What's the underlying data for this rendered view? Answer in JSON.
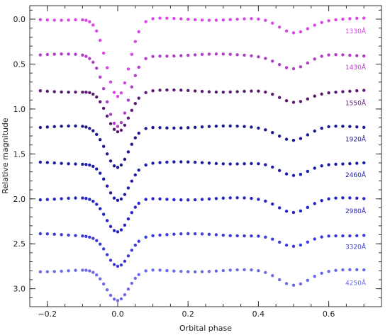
{
  "chart_data": {
    "type": "scatter",
    "title": "",
    "xlabel": "Orbital phase",
    "ylabel": "Relative magnitude",
    "xlim": [
      -0.25,
      0.75
    ],
    "ylim": [
      3.2,
      -0.15
    ],
    "y_inverted": true,
    "grid": false,
    "x_ticks": [
      -0.2,
      0.0,
      0.2,
      0.4,
      0.6
    ],
    "x_tick_labels": [
      "−0.2",
      "0.0",
      "0.2",
      "0.4",
      "0.6"
    ],
    "y_ticks": [
      0.0,
      0.5,
      1.0,
      1.5,
      2.0,
      2.5,
      3.0
    ],
    "y_tick_labels": [
      "0.0",
      "0.5",
      "1.0",
      "1.5",
      "2.0",
      "2.5",
      "3.0"
    ],
    "series": [
      {
        "name": "1330Å",
        "offset": 0.0,
        "primary_depth": 0.85,
        "secondary_depth": 0.15,
        "color": "#d846e6"
      },
      {
        "name": "1430Å",
        "offset": 0.4,
        "primary_depth": 0.8,
        "secondary_depth": 0.15,
        "color": "#b03cc8"
      },
      {
        "name": "1550Å",
        "offset": 0.8,
        "primary_depth": 0.45,
        "secondary_depth": 0.13,
        "color": "#5a1a6e"
      },
      {
        "name": "1920Å",
        "offset": 1.2,
        "primary_depth": 0.45,
        "secondary_depth": 0.14,
        "color": "#1a1a8c"
      },
      {
        "name": "2460Å",
        "offset": 1.6,
        "primary_depth": 0.42,
        "secondary_depth": 0.15,
        "color": "#1c1ca8"
      },
      {
        "name": "2980Å",
        "offset": 2.0,
        "primary_depth": 0.36,
        "secondary_depth": 0.14,
        "color": "#2424c8"
      },
      {
        "name": "3320Å",
        "offset": 2.4,
        "primary_depth": 0.36,
        "secondary_depth": 0.14,
        "color": "#3a3ad8"
      },
      {
        "name": "4250Å",
        "offset": 2.8,
        "primary_depth": 0.32,
        "secondary_depth": 0.15,
        "color": "#6a6ae8"
      }
    ],
    "phase_points": [
      -0.22,
      -0.2,
      -0.18,
      -0.16,
      -0.14,
      -0.12,
      -0.1,
      -0.09,
      -0.08,
      -0.07,
      -0.06,
      -0.05,
      -0.04,
      -0.03,
      -0.02,
      -0.01,
      0.0,
      0.01,
      0.02,
      0.03,
      0.04,
      0.05,
      0.06,
      0.08,
      0.1,
      0.12,
      0.14,
      0.16,
      0.18,
      0.2,
      0.22,
      0.24,
      0.26,
      0.28,
      0.3,
      0.32,
      0.34,
      0.36,
      0.38,
      0.4,
      0.42,
      0.44,
      0.46,
      0.48,
      0.5,
      0.52,
      0.54,
      0.56,
      0.58,
      0.6,
      0.62,
      0.64,
      0.66,
      0.68,
      0.7
    ]
  }
}
